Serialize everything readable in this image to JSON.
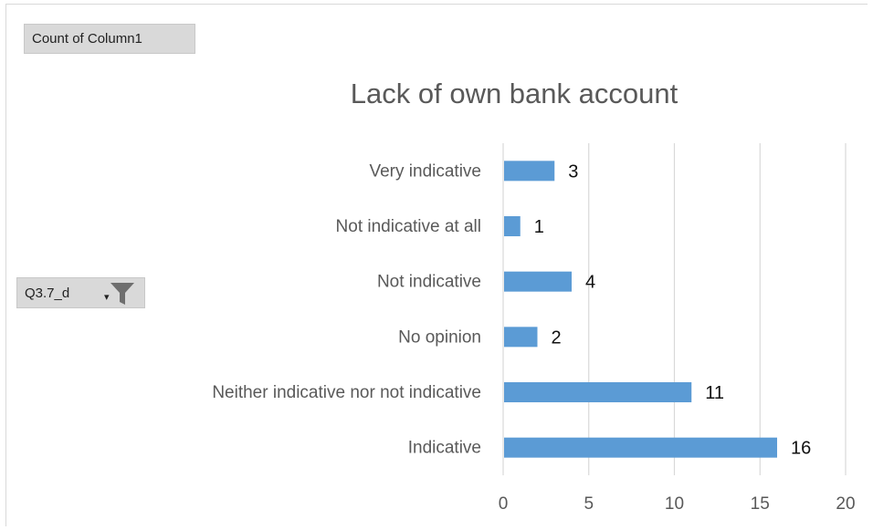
{
  "pivot": {
    "value_field_label": "Count of Column1",
    "axis_field_label": "Q3.7_d",
    "axis_field_icons": [
      "dropdown-arrow-icon",
      "filter-funnel-icon"
    ]
  },
  "chart_data": {
    "type": "bar",
    "orientation": "horizontal",
    "title": "Lack of own bank account",
    "categories": [
      "Very indicative",
      "Not indicative at all",
      "Not indicative",
      "No opinion",
      "Neither indicative nor not indicative",
      "Indicative"
    ],
    "values": [
      3,
      1,
      4,
      2,
      11,
      16
    ],
    "xlim": [
      0,
      20
    ],
    "xticks": [
      0,
      5,
      10,
      15,
      20
    ],
    "xlabel": "",
    "ylabel": "",
    "grid": true,
    "legend": "none",
    "bar_color": "#5b9bd5",
    "data_labels": true
  }
}
